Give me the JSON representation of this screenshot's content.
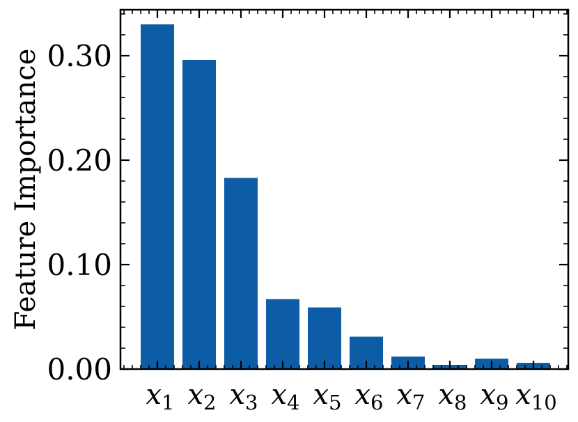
{
  "chart_data": {
    "type": "bar",
    "title": "",
    "xlabel": "",
    "ylabel": "Feature Importance",
    "categories": [
      {
        "var": "x",
        "sub": "1"
      },
      {
        "var": "x",
        "sub": "2"
      },
      {
        "var": "x",
        "sub": "3"
      },
      {
        "var": "x",
        "sub": "4"
      },
      {
        "var": "x",
        "sub": "5"
      },
      {
        "var": "x",
        "sub": "6"
      },
      {
        "var": "x",
        "sub": "7"
      },
      {
        "var": "x",
        "sub": "8"
      },
      {
        "var": "x",
        "sub": "9"
      },
      {
        "var": "x",
        "sub": "10"
      }
    ],
    "values": [
      0.33,
      0.296,
      0.183,
      0.067,
      0.059,
      0.031,
      0.012,
      0.004,
      0.01,
      0.006
    ],
    "ylim": [
      0,
      0.344
    ],
    "yticks": [
      0.0,
      0.1,
      0.2,
      0.3
    ],
    "ytick_labels": [
      "0.00",
      "0.10",
      "0.20",
      "0.30"
    ],
    "grid": false,
    "legend": "none",
    "bar_color": "#0C5DA5"
  }
}
